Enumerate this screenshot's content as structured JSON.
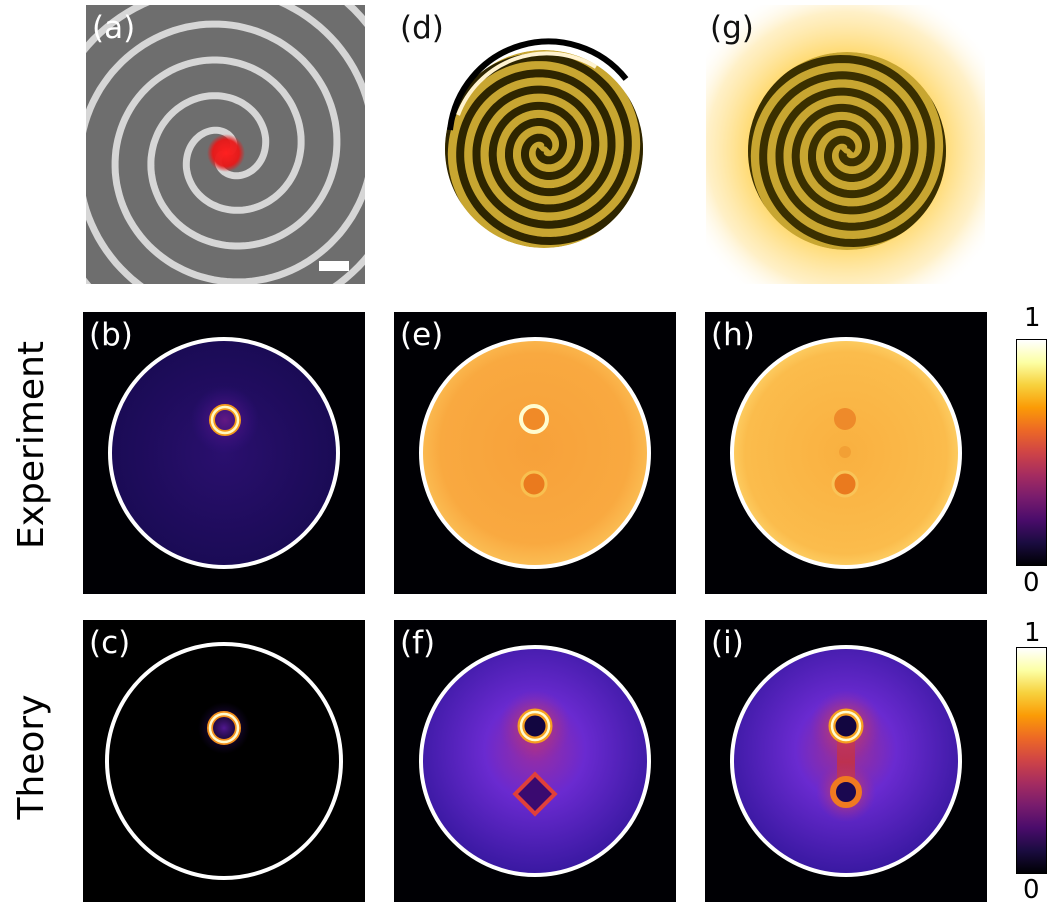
{
  "panels": {
    "a": {
      "label": "(a)"
    },
    "b": {
      "label": "(b)"
    },
    "c": {
      "label": "(c)"
    },
    "d": {
      "label": "(d)"
    },
    "e": {
      "label": "(e)"
    },
    "f": {
      "label": "(f)"
    },
    "g": {
      "label": "(g)"
    },
    "h": {
      "label": "(h)"
    },
    "i": {
      "label": "(i)"
    }
  },
  "rows": {
    "experiment": "Experiment",
    "theory": "Theory"
  },
  "colorbars": {
    "top": {
      "max_label": "1",
      "min_label": "0"
    },
    "bottom": {
      "max_label": "1",
      "min_label": "0"
    }
  },
  "colors": {
    "colormap_stops": [
      "#000004",
      "#1b0c41",
      "#4a0c6b",
      "#781c6d",
      "#a52c60",
      "#cf4446",
      "#ed6925",
      "#fb9b06",
      "#f7d13d",
      "#fcffa4",
      "#ffffff"
    ],
    "sem_background": "#6b6b6b",
    "sem_ridge": "#d4d4d4",
    "spiral_gold": "#c8a631",
    "spiral_dark": "#2b2200",
    "glow": "#ffd766"
  }
}
